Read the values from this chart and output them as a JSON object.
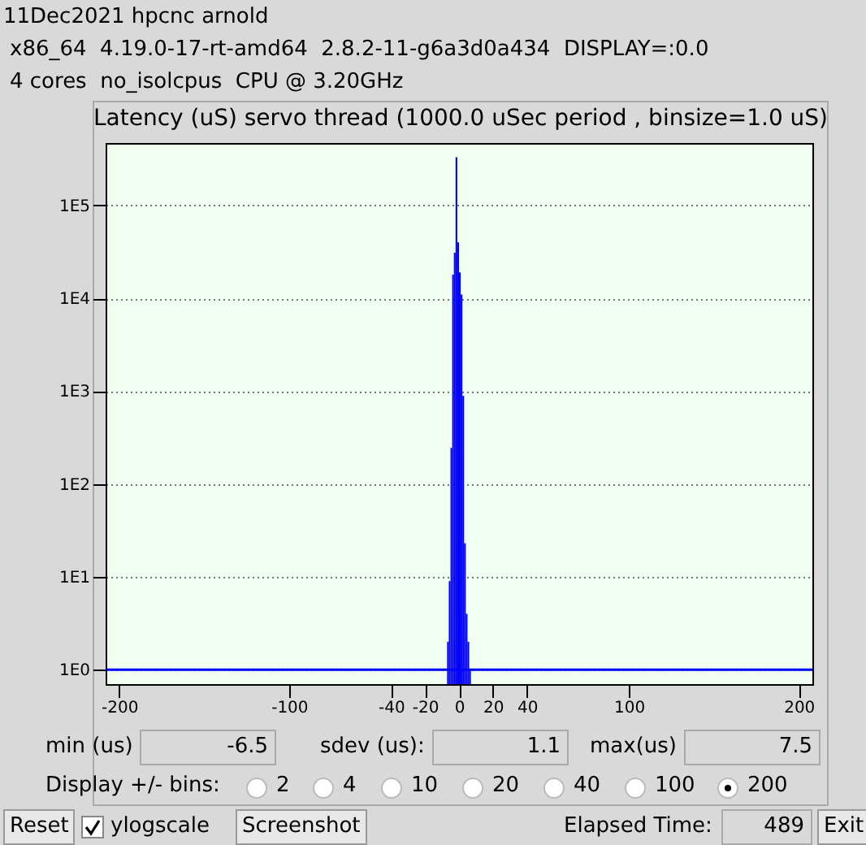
{
  "chart_data": {
    "type": "histogram",
    "title": "Latency (uS) servo thread (1000.0 uSec period , binsize=1.0 uS)",
    "bins": [
      -7,
      -6,
      -5,
      -4,
      -3,
      -2,
      -1,
      0,
      1,
      2,
      3,
      4,
      5,
      6,
      7
    ],
    "values": [
      2,
      9,
      245,
      18000,
      31000,
      330000,
      40000,
      19000,
      11000,
      890,
      23,
      4,
      2,
      1
    ],
    "color": "#0000ff",
    "log": "y",
    "xlim": [
      -208,
      208
    ],
    "xticks": [
      -200,
      -100,
      -40,
      -20,
      0,
      20,
      40,
      100,
      200
    ],
    "ylim": [
      0.7,
      470000
    ],
    "yticks": [
      {
        "value": 1,
        "label": "1E0"
      },
      {
        "value": 10,
        "label": "1E1"
      },
      {
        "value": 100,
        "label": "1E2"
      },
      {
        "value": 1000,
        "label": "1E3"
      },
      {
        "value": 10000,
        "label": "1E4"
      },
      {
        "value": 100000,
        "label": "1E5"
      }
    ],
    "grid": "y",
    "ref_lines": [
      {
        "axis": "y",
        "value": 1,
        "color": "#0000ff"
      }
    ],
    "annotations": [
      "11Dec2021 hpcnc arnold",
      "x86_64  4.19.0-17-rt-amd64  2.8.2-11-g6a3d0a434  DISPLAY=:0.0",
      "4 cores  no_isolcpus  CPU @ 3.20GHz",
      "min (us)",
      "-6.5",
      "sdev (us):",
      "1.1",
      "max(us)",
      "7.5",
      "Display +/- bins:",
      "2",
      "4",
      "10",
      "20",
      "40",
      "100",
      "200",
      "Reset",
      "ylogscale",
      "Screenshot",
      "Elapsed Time:",
      "489",
      "Exit"
    ]
  }
}
